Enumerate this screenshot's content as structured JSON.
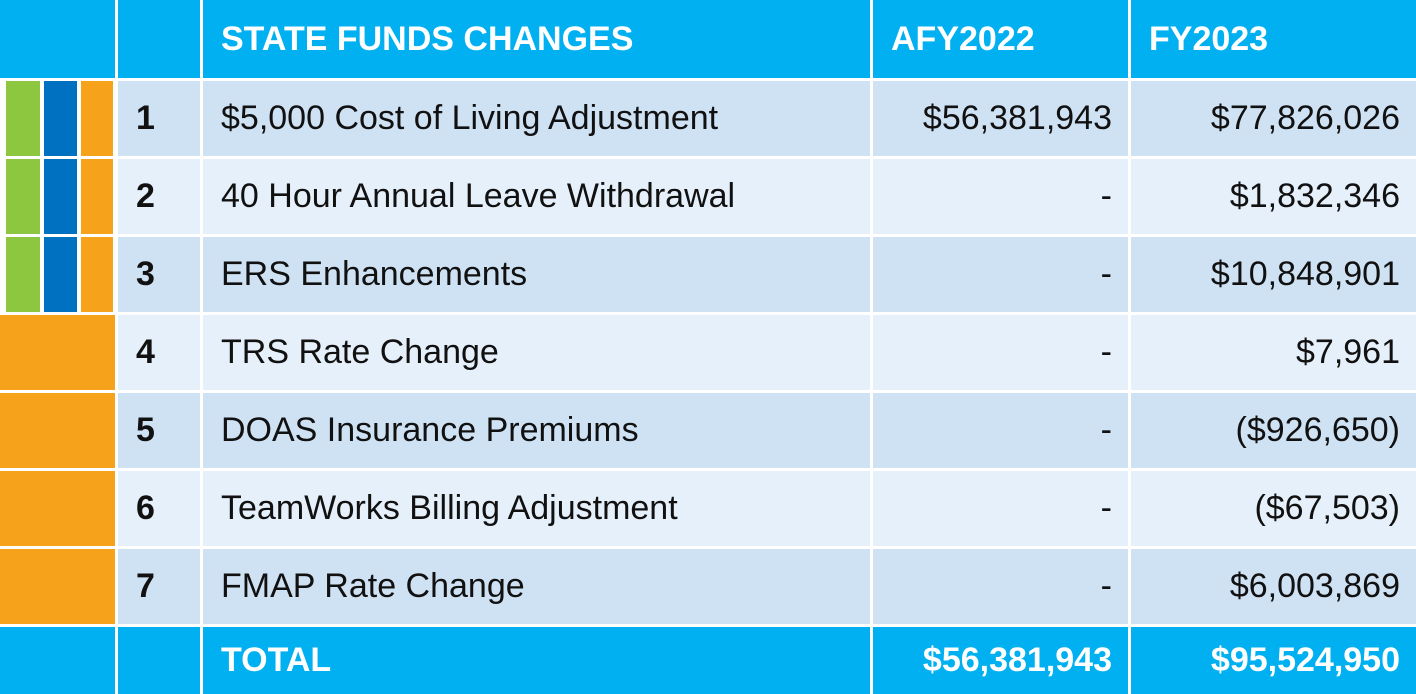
{
  "header": {
    "title": "STATE FUNDS CHANGES",
    "col1": "AFY2022",
    "col2": "FY2023"
  },
  "table": {
    "rows": [
      [
        "1",
        "$5,000 Cost of Living Adjustment",
        "$56,381,943",
        "$77,826,026"
      ],
      [
        "2",
        "40 Hour Annual Leave Withdrawal",
        "-",
        "$1,832,346"
      ],
      [
        "3",
        "ERS Enhancements",
        "-",
        "$10,848,901"
      ],
      [
        "4",
        "TRS Rate Change",
        "-",
        "$7,961"
      ],
      [
        "5",
        "DOAS Insurance Premiums",
        "-",
        "($926,650)"
      ],
      [
        "6",
        "TeamWorks Billing Adjustment",
        "-",
        "($67,503)"
      ],
      [
        "7",
        "FMAP Rate Change",
        "-",
        "$6,003,869"
      ]
    ]
  },
  "total": {
    "label": "TOTAL",
    "col1": "$56,381,943",
    "col2": "$95,524,950"
  }
}
